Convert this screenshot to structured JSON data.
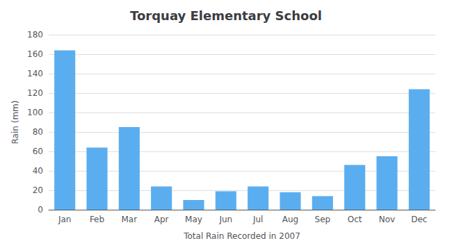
{
  "chart_data": {
    "type": "bar",
    "title": "Torquay Elementary School",
    "xlabel": "Total Rain Recorded in 2007",
    "ylabel": "Rain (mm)",
    "categories": [
      "Jan",
      "Feb",
      "Mar",
      "Apr",
      "May",
      "Jun",
      "Jul",
      "Aug",
      "Sep",
      "Oct",
      "Nov",
      "Dec"
    ],
    "values": [
      164,
      64,
      85,
      24,
      10,
      19,
      24,
      18,
      14,
      46,
      55,
      124
    ],
    "color": "#5aaef0",
    "ylim": [
      0,
      180
    ],
    "yticks": [
      0,
      20,
      40,
      60,
      80,
      100,
      120,
      140,
      160,
      180
    ],
    "grid": true
  }
}
